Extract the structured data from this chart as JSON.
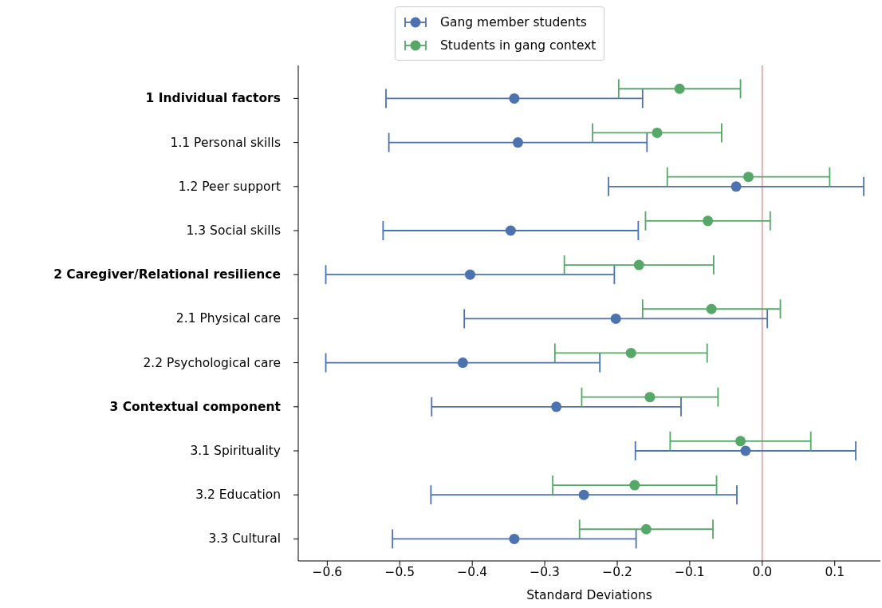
{
  "chart_data": {
    "type": "scatter",
    "orientation": "horizontal",
    "xlabel": "Standard Deviations",
    "categories": [
      "1 Individual factors",
      "1.1 Personal skills",
      "1.2 Peer support",
      "1.3 Social skills",
      "2 Caregiver/Relational resilience",
      "2.1 Physical care",
      "2.2 Psychological care",
      "3 Contextual component",
      "3.1 Spirituality",
      "3.2 Education",
      "3.3 Cultural"
    ],
    "series": [
      {
        "name": "Gang member students",
        "color": "#4c72b0",
        "values": [
          -0.342,
          -0.337,
          -0.036,
          -0.347,
          -0.403,
          -0.202,
          -0.413,
          -0.284,
          -0.023,
          -0.246,
          -0.342
        ],
        "errors": [
          0.177,
          0.178,
          0.176,
          0.176,
          0.199,
          0.209,
          0.189,
          0.172,
          0.152,
          0.211,
          0.168
        ]
      },
      {
        "name": "Students in gang context",
        "color": "#55a868",
        "values": [
          -0.114,
          -0.145,
          -0.019,
          -0.075,
          -0.17,
          -0.07,
          -0.181,
          -0.155,
          -0.03,
          -0.176,
          -0.16
        ],
        "errors": [
          0.084,
          0.089,
          0.112,
          0.086,
          0.103,
          0.095,
          0.105,
          0.094,
          0.097,
          0.113,
          0.092
        ]
      }
    ],
    "xlim": [
      -0.64,
      0.163
    ],
    "xticks": [
      -0.6,
      -0.5,
      -0.4,
      -0.3,
      -0.2,
      -0.1,
      {
        "value": 0,
        "label": "0.0"
      },
      0.1
    ],
    "ref_lines": [
      {
        "axis": "x",
        "value": 0,
        "color": "#f08080"
      }
    ],
    "marker": "circle",
    "legend": "top"
  }
}
